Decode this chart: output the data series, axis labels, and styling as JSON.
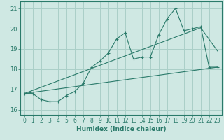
{
  "title": "",
  "xlabel": "Humidex (Indice chaleur)",
  "ylabel": "",
  "xlim": [
    -0.5,
    23.5
  ],
  "ylim": [
    15.75,
    21.35
  ],
  "yticks": [
    16,
    17,
    18,
    19,
    20,
    21
  ],
  "xticks": [
    0,
    1,
    2,
    3,
    4,
    5,
    6,
    7,
    8,
    9,
    10,
    11,
    12,
    13,
    14,
    15,
    16,
    17,
    18,
    19,
    20,
    21,
    22,
    23
  ],
  "bg_color": "#cfe8e3",
  "grid_color": "#aacfc8",
  "line_color": "#2a7a6a",
  "series1_x": [
    0,
    1,
    2,
    3,
    4,
    5,
    6,
    7,
    8,
    9,
    10,
    11,
    12,
    13,
    14,
    15,
    16,
    17,
    18,
    19,
    20,
    21,
    22,
    23
  ],
  "series1_y": [
    16.8,
    16.8,
    16.5,
    16.4,
    16.4,
    16.7,
    16.9,
    17.3,
    18.1,
    18.4,
    18.8,
    19.5,
    19.8,
    18.5,
    18.6,
    18.6,
    19.7,
    20.5,
    21.0,
    19.9,
    20.0,
    20.1,
    18.1,
    18.1
  ],
  "series2_x": [
    0,
    23
  ],
  "series2_y": [
    16.8,
    18.1
  ],
  "series3_x": [
    0,
    21,
    23
  ],
  "series3_y": [
    16.8,
    20.05,
    18.9
  ]
}
